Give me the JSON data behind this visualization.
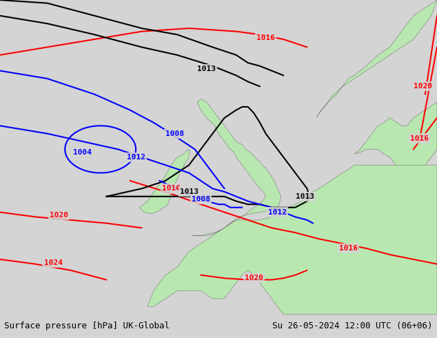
{
  "title_left": "Surface pressure [hPa] UK-Global",
  "title_right": "Su 26-05-2024 12:00 UTC (06+06)",
  "bg_color": "#d4d4d4",
  "land_color": "#b8e8b0",
  "footer_bg": "#e0e0e0",
  "map_xlim": [
    -22,
    15
  ],
  "map_ylim": [
    45,
    65
  ]
}
